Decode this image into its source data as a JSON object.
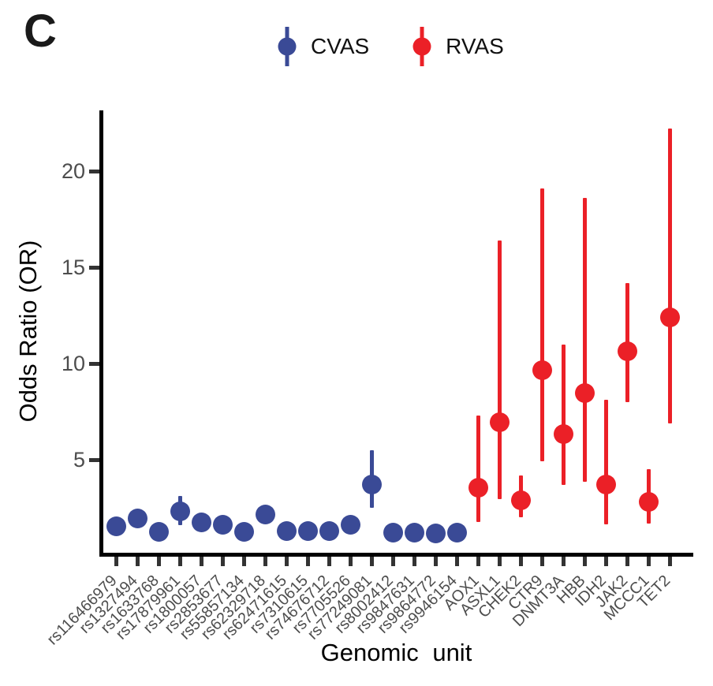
{
  "panel_label": "C",
  "legend": {
    "items": [
      {
        "label": "CVAS",
        "color": "#3A4A96"
      },
      {
        "label": "RVAS",
        "color": "#EB2027"
      }
    ]
  },
  "colors": {
    "axis": "#000000",
    "tick": "#333333",
    "tick_label": "#4D4D4D",
    "cvas": "#3A4A96",
    "rvas": "#EB2027"
  },
  "chart_data": {
    "type": "scatter",
    "subtype": "pointrange",
    "title": "",
    "xlabel": "Genomic unit",
    "ylabel": "Odds Ratio (OR)",
    "ylim": [
      0,
      23
    ],
    "yticks": [
      5,
      10,
      15,
      20
    ],
    "grid": false,
    "legend_position": "top",
    "categories": [
      "rs116466979",
      "rs1327494",
      "rs1633768",
      "rs17879961",
      "rs1800057",
      "rs2853677",
      "rs55857134",
      "rs62329718",
      "rs62471615",
      "rs7310615",
      "rs74676712",
      "rs7705526",
      "rs77249081",
      "rs8002412",
      "rs9847631",
      "rs9864772",
      "rs9946154",
      "AOX1",
      "ASXL1",
      "CHEK2",
      "CTR9",
      "DNMT3A",
      "HBB",
      "IDH2",
      "JAK2",
      "MCCC1",
      "TET2"
    ],
    "series": [
      {
        "name": "CVAS",
        "color": "#3A4A96",
        "points": [
          {
            "label": "rs116466979",
            "or": 1.55,
            "lo": 1.4,
            "hi": 1.7
          },
          {
            "label": "rs1327494",
            "or": 1.95,
            "lo": 1.8,
            "hi": 2.1
          },
          {
            "label": "rs1633768",
            "or": 1.25,
            "lo": 1.15,
            "hi": 1.35
          },
          {
            "label": "rs17879961",
            "or": 2.3,
            "lo": 1.6,
            "hi": 3.1
          },
          {
            "label": "rs1800057",
            "or": 1.75,
            "lo": 1.6,
            "hi": 1.9
          },
          {
            "label": "rs2853677",
            "or": 1.6,
            "lo": 1.5,
            "hi": 1.7
          },
          {
            "label": "rs55857134",
            "or": 1.25,
            "lo": 1.15,
            "hi": 1.35
          },
          {
            "label": "rs62329718",
            "or": 2.15,
            "lo": 2.0,
            "hi": 2.3
          },
          {
            "label": "rs62471615",
            "or": 1.3,
            "lo": 1.2,
            "hi": 1.4
          },
          {
            "label": "rs7310615",
            "or": 1.3,
            "lo": 1.2,
            "hi": 1.4
          },
          {
            "label": "rs74676712",
            "or": 1.3,
            "lo": 1.2,
            "hi": 1.4
          },
          {
            "label": "rs7705526",
            "or": 1.6,
            "lo": 1.5,
            "hi": 1.7
          },
          {
            "label": "rs77249081",
            "or": 3.7,
            "lo": 2.5,
            "hi": 5.5
          },
          {
            "label": "rs8002412",
            "or": 1.2,
            "lo": 1.1,
            "hi": 1.3
          },
          {
            "label": "rs9847631",
            "or": 1.2,
            "lo": 1.1,
            "hi": 1.3
          },
          {
            "label": "rs9864772",
            "or": 1.15,
            "lo": 1.05,
            "hi": 1.25
          },
          {
            "label": "rs9946154",
            "or": 1.2,
            "lo": 1.1,
            "hi": 1.3
          }
        ]
      },
      {
        "name": "RVAS",
        "color": "#EB2027",
        "points": [
          {
            "label": "AOX1",
            "or": 3.55,
            "lo": 1.75,
            "hi": 7.3
          },
          {
            "label": "ASXL1",
            "or": 6.95,
            "lo": 2.95,
            "hi": 16.4
          },
          {
            "label": "CHEK2",
            "or": 2.9,
            "lo": 2.0,
            "hi": 4.2
          },
          {
            "label": "CTR9",
            "or": 9.65,
            "lo": 4.9,
            "hi": 19.1
          },
          {
            "label": "DNMT3A",
            "or": 6.35,
            "lo": 3.7,
            "hi": 11.0
          },
          {
            "label": "HBB",
            "or": 8.45,
            "lo": 3.85,
            "hi": 18.6
          },
          {
            "label": "IDH2",
            "or": 3.7,
            "lo": 1.65,
            "hi": 8.1
          },
          {
            "label": "JAK2",
            "or": 10.65,
            "lo": 8.0,
            "hi": 14.2
          },
          {
            "label": "MCCC1",
            "or": 2.8,
            "lo": 1.7,
            "hi": 4.5
          },
          {
            "label": "TET2",
            "or": 12.4,
            "lo": 6.9,
            "hi": 22.2
          }
        ]
      }
    ]
  }
}
